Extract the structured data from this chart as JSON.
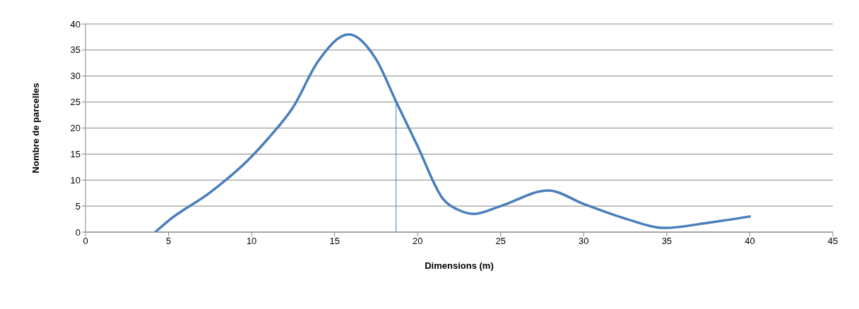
{
  "chart_data": {
    "type": "line",
    "xlabel": "Dimensions (m)",
    "ylabel": "Nombre de parcelles",
    "xlim": [
      0,
      45
    ],
    "xticks": [
      0,
      5,
      10,
      15,
      20,
      25,
      30,
      35,
      40,
      45
    ],
    "ylim": [
      0,
      40
    ],
    "yticks": [
      0,
      5,
      10,
      15,
      20,
      25,
      30,
      35,
      40
    ],
    "grid": "y",
    "marker": "none",
    "line_style": "solid",
    "series": [
      {
        "color": "#4a7ebb",
        "x": [
          4.2,
          5,
          7.5,
          10,
          11,
          12.5,
          14,
          15.85,
          17.5,
          18.7,
          20,
          21.5,
          22.5,
          23.4,
          25,
          27.85,
          30,
          32.5,
          34.9,
          37.5,
          40
        ],
        "values": [
          0,
          2.2,
          7.6,
          14.5,
          18,
          24,
          32.8,
          38,
          33.2,
          25.1,
          16.5,
          6.5,
          4.2,
          3.5,
          5,
          8,
          5.4,
          2.6,
          0.8,
          1.8,
          3
        ]
      },
      {
        "color": "#4a7ebb",
        "x": [
          18.7,
          18.7
        ],
        "values": [
          0,
          25.1
        ]
      }
    ]
  }
}
